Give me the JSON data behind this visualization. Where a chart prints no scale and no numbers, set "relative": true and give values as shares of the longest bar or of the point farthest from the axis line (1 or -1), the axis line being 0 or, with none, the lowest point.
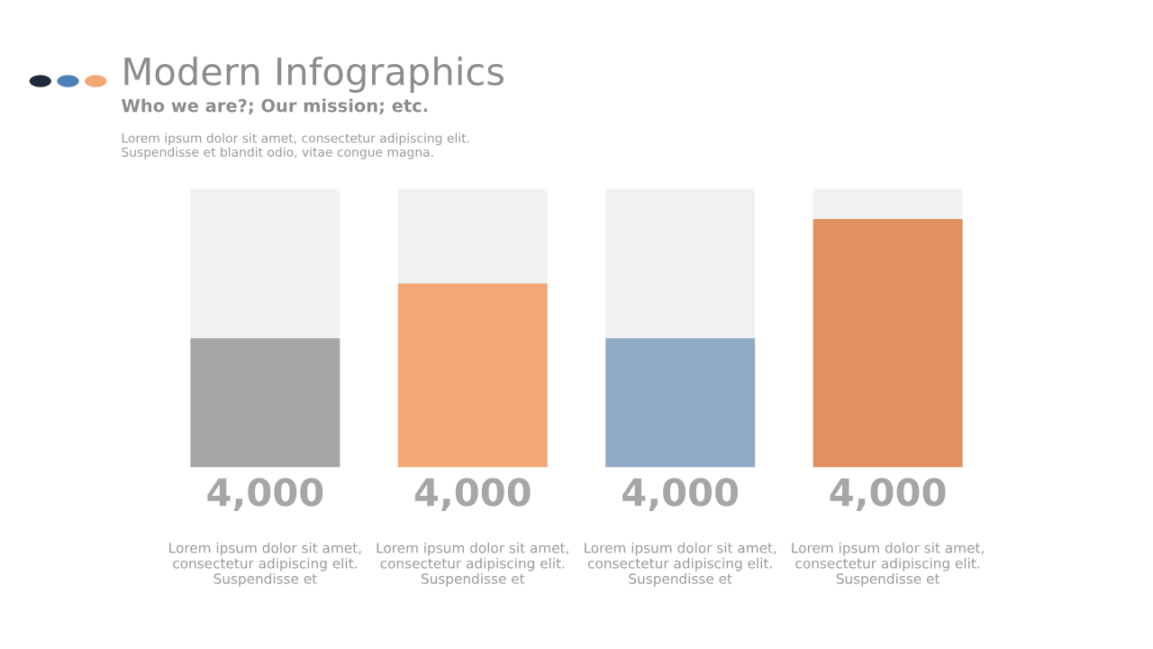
{
  "chart_data": {
    "type": "bar",
    "title": "Modern Infographics",
    "subtitle": "Who we are?; Our mission; etc.",
    "annotations": [
      "Lorem ipsum dolor sit amet, consectetur adipiscing elit.\nSuspendisse et blandit odio, vitae congue magna.",
      "4,000",
      "4,000",
      "4,000",
      "4,000"
    ],
    "categories": [
      "Lorem ipsum dolor sit amet,\nconsectetur adipiscing elit.\nSuspendisse et",
      "Lorem ipsum dolor sit amet,\nconsectetur adipiscing elit.\nSuspendisse et",
      "Lorem ipsum dolor sit amet,\nconsectetur adipiscing elit.\nSuspendisse et",
      "Lorem ipsum dolor sit amet,\nconsectetur adipiscing elit.\nSuspendisse et"
    ],
    "values": [
      0.52,
      0.74,
      0.52,
      1.0
    ],
    "colors": [
      "#a6a6a6",
      "#f3a775",
      "#8eaac4",
      "#e0915f"
    ],
    "relative": true
  }
}
